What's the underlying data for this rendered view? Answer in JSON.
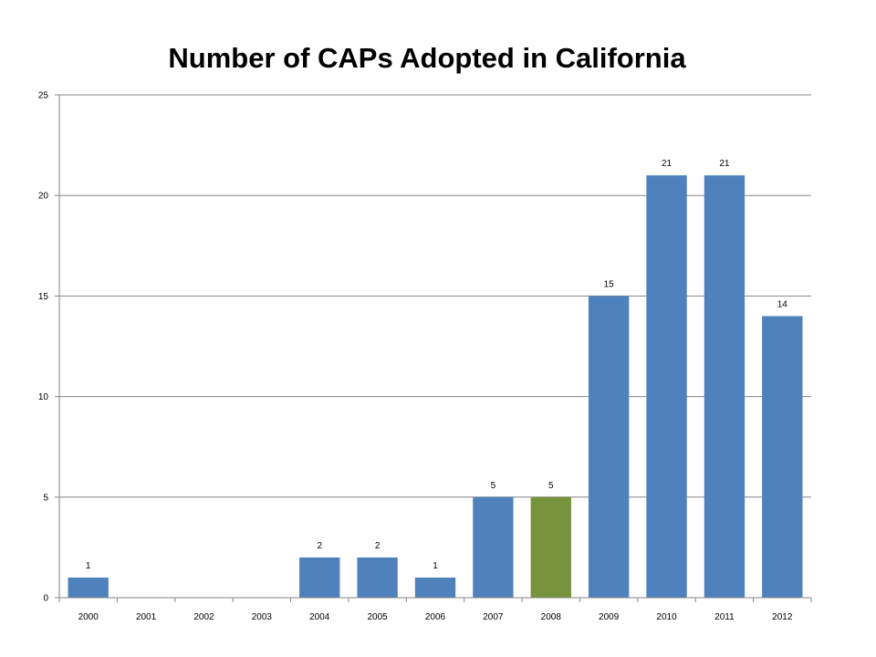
{
  "chart_data": {
    "type": "bar",
    "title": "Number of CAPs Adopted in California",
    "xlabel": "",
    "ylabel": "",
    "categories": [
      "2000",
      "2001",
      "2002",
      "2003",
      "2004",
      "2005",
      "2006",
      "2007",
      "2008",
      "2009",
      "2010",
      "2011",
      "2012"
    ],
    "values": [
      1,
      0,
      0,
      0,
      2,
      2,
      1,
      5,
      5,
      15,
      21,
      21,
      14
    ],
    "data_labels": [
      "1",
      "",
      "",
      "",
      "2",
      "2",
      "1",
      "5",
      "5",
      "15",
      "21",
      "21",
      "14"
    ],
    "bar_colors": [
      "#4f81bd",
      "#4f81bd",
      "#4f81bd",
      "#4f81bd",
      "#4f81bd",
      "#4f81bd",
      "#4f81bd",
      "#4f81bd",
      "#77933c",
      "#4f81bd",
      "#4f81bd",
      "#4f81bd",
      "#4f81bd"
    ],
    "ylim": [
      0,
      25
    ],
    "yticks": [
      0,
      5,
      10,
      15,
      20,
      25
    ],
    "grid": true,
    "legend": "none"
  }
}
